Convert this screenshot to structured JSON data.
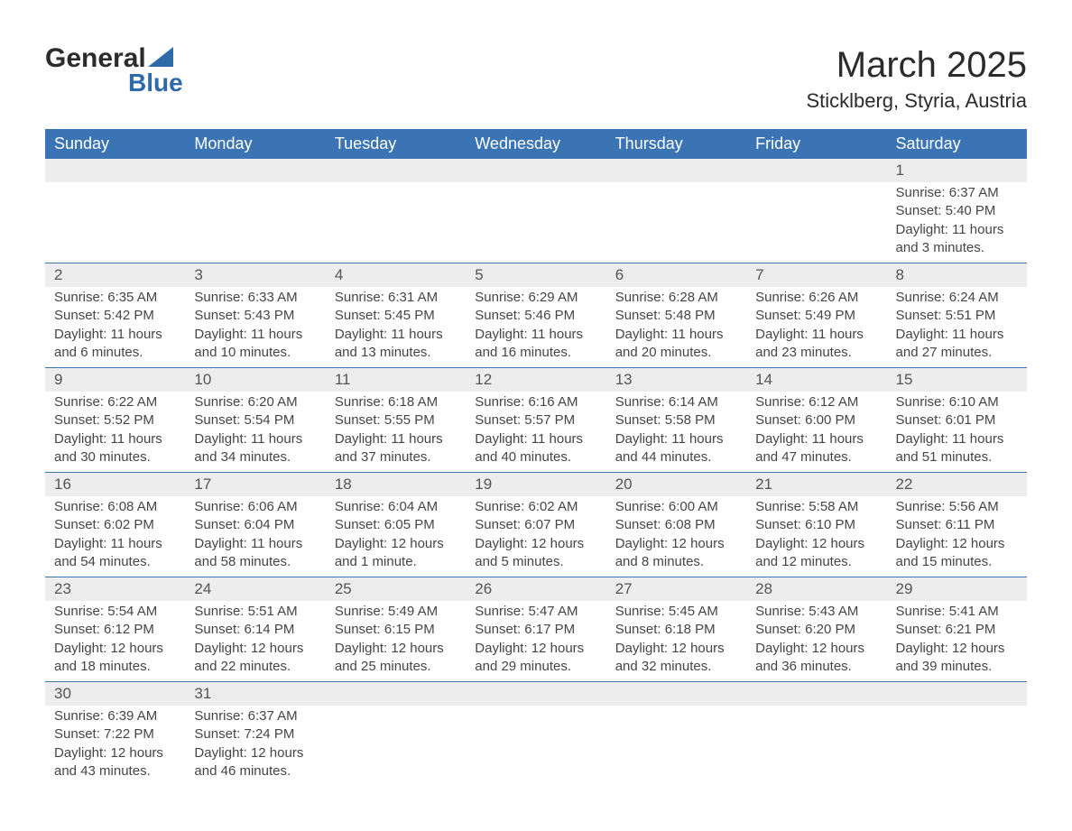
{
  "brand": {
    "name_part1": "General",
    "name_part2": "Blue",
    "text_color": "#2b2b2b",
    "accent_color": "#2f6aa8"
  },
  "title": "March 2025",
  "location": "Sticklberg, Styria, Austria",
  "colors": {
    "header_bg": "#3a74b4",
    "header_text": "#ffffff",
    "daynum_bg": "#ededed",
    "daynum_text": "#555555",
    "body_text": "#454545",
    "row_border": "#3a74b4",
    "page_bg": "#ffffff"
  },
  "fonts": {
    "title_size_pt": 30,
    "location_size_pt": 16,
    "header_size_pt": 14,
    "daynum_size_pt": 13,
    "detail_size_pt": 11
  },
  "day_headers": [
    "Sunday",
    "Monday",
    "Tuesday",
    "Wednesday",
    "Thursday",
    "Friday",
    "Saturday"
  ],
  "weeks": [
    [
      null,
      null,
      null,
      null,
      null,
      null,
      {
        "n": "1",
        "sunrise": "6:37 AM",
        "sunset": "5:40 PM",
        "daylight": "11 hours and 3 minutes."
      }
    ],
    [
      {
        "n": "2",
        "sunrise": "6:35 AM",
        "sunset": "5:42 PM",
        "daylight": "11 hours and 6 minutes."
      },
      {
        "n": "3",
        "sunrise": "6:33 AM",
        "sunset": "5:43 PM",
        "daylight": "11 hours and 10 minutes."
      },
      {
        "n": "4",
        "sunrise": "6:31 AM",
        "sunset": "5:45 PM",
        "daylight": "11 hours and 13 minutes."
      },
      {
        "n": "5",
        "sunrise": "6:29 AM",
        "sunset": "5:46 PM",
        "daylight": "11 hours and 16 minutes."
      },
      {
        "n": "6",
        "sunrise": "6:28 AM",
        "sunset": "5:48 PM",
        "daylight": "11 hours and 20 minutes."
      },
      {
        "n": "7",
        "sunrise": "6:26 AM",
        "sunset": "5:49 PM",
        "daylight": "11 hours and 23 minutes."
      },
      {
        "n": "8",
        "sunrise": "6:24 AM",
        "sunset": "5:51 PM",
        "daylight": "11 hours and 27 minutes."
      }
    ],
    [
      {
        "n": "9",
        "sunrise": "6:22 AM",
        "sunset": "5:52 PM",
        "daylight": "11 hours and 30 minutes."
      },
      {
        "n": "10",
        "sunrise": "6:20 AM",
        "sunset": "5:54 PM",
        "daylight": "11 hours and 34 minutes."
      },
      {
        "n": "11",
        "sunrise": "6:18 AM",
        "sunset": "5:55 PM",
        "daylight": "11 hours and 37 minutes."
      },
      {
        "n": "12",
        "sunrise": "6:16 AM",
        "sunset": "5:57 PM",
        "daylight": "11 hours and 40 minutes."
      },
      {
        "n": "13",
        "sunrise": "6:14 AM",
        "sunset": "5:58 PM",
        "daylight": "11 hours and 44 minutes."
      },
      {
        "n": "14",
        "sunrise": "6:12 AM",
        "sunset": "6:00 PM",
        "daylight": "11 hours and 47 minutes."
      },
      {
        "n": "15",
        "sunrise": "6:10 AM",
        "sunset": "6:01 PM",
        "daylight": "11 hours and 51 minutes."
      }
    ],
    [
      {
        "n": "16",
        "sunrise": "6:08 AM",
        "sunset": "6:02 PM",
        "daylight": "11 hours and 54 minutes."
      },
      {
        "n": "17",
        "sunrise": "6:06 AM",
        "sunset": "6:04 PM",
        "daylight": "11 hours and 58 minutes."
      },
      {
        "n": "18",
        "sunrise": "6:04 AM",
        "sunset": "6:05 PM",
        "daylight": "12 hours and 1 minute."
      },
      {
        "n": "19",
        "sunrise": "6:02 AM",
        "sunset": "6:07 PM",
        "daylight": "12 hours and 5 minutes."
      },
      {
        "n": "20",
        "sunrise": "6:00 AM",
        "sunset": "6:08 PM",
        "daylight": "12 hours and 8 minutes."
      },
      {
        "n": "21",
        "sunrise": "5:58 AM",
        "sunset": "6:10 PM",
        "daylight": "12 hours and 12 minutes."
      },
      {
        "n": "22",
        "sunrise": "5:56 AM",
        "sunset": "6:11 PM",
        "daylight": "12 hours and 15 minutes."
      }
    ],
    [
      {
        "n": "23",
        "sunrise": "5:54 AM",
        "sunset": "6:12 PM",
        "daylight": "12 hours and 18 minutes."
      },
      {
        "n": "24",
        "sunrise": "5:51 AM",
        "sunset": "6:14 PM",
        "daylight": "12 hours and 22 minutes."
      },
      {
        "n": "25",
        "sunrise": "5:49 AM",
        "sunset": "6:15 PM",
        "daylight": "12 hours and 25 minutes."
      },
      {
        "n": "26",
        "sunrise": "5:47 AM",
        "sunset": "6:17 PM",
        "daylight": "12 hours and 29 minutes."
      },
      {
        "n": "27",
        "sunrise": "5:45 AM",
        "sunset": "6:18 PM",
        "daylight": "12 hours and 32 minutes."
      },
      {
        "n": "28",
        "sunrise": "5:43 AM",
        "sunset": "6:20 PM",
        "daylight": "12 hours and 36 minutes."
      },
      {
        "n": "29",
        "sunrise": "5:41 AM",
        "sunset": "6:21 PM",
        "daylight": "12 hours and 39 minutes."
      }
    ],
    [
      {
        "n": "30",
        "sunrise": "6:39 AM",
        "sunset": "7:22 PM",
        "daylight": "12 hours and 43 minutes."
      },
      {
        "n": "31",
        "sunrise": "6:37 AM",
        "sunset": "7:24 PM",
        "daylight": "12 hours and 46 minutes."
      },
      null,
      null,
      null,
      null,
      null
    ]
  ],
  "labels": {
    "sunrise": "Sunrise:",
    "sunset": "Sunset:",
    "daylight": "Daylight:"
  }
}
